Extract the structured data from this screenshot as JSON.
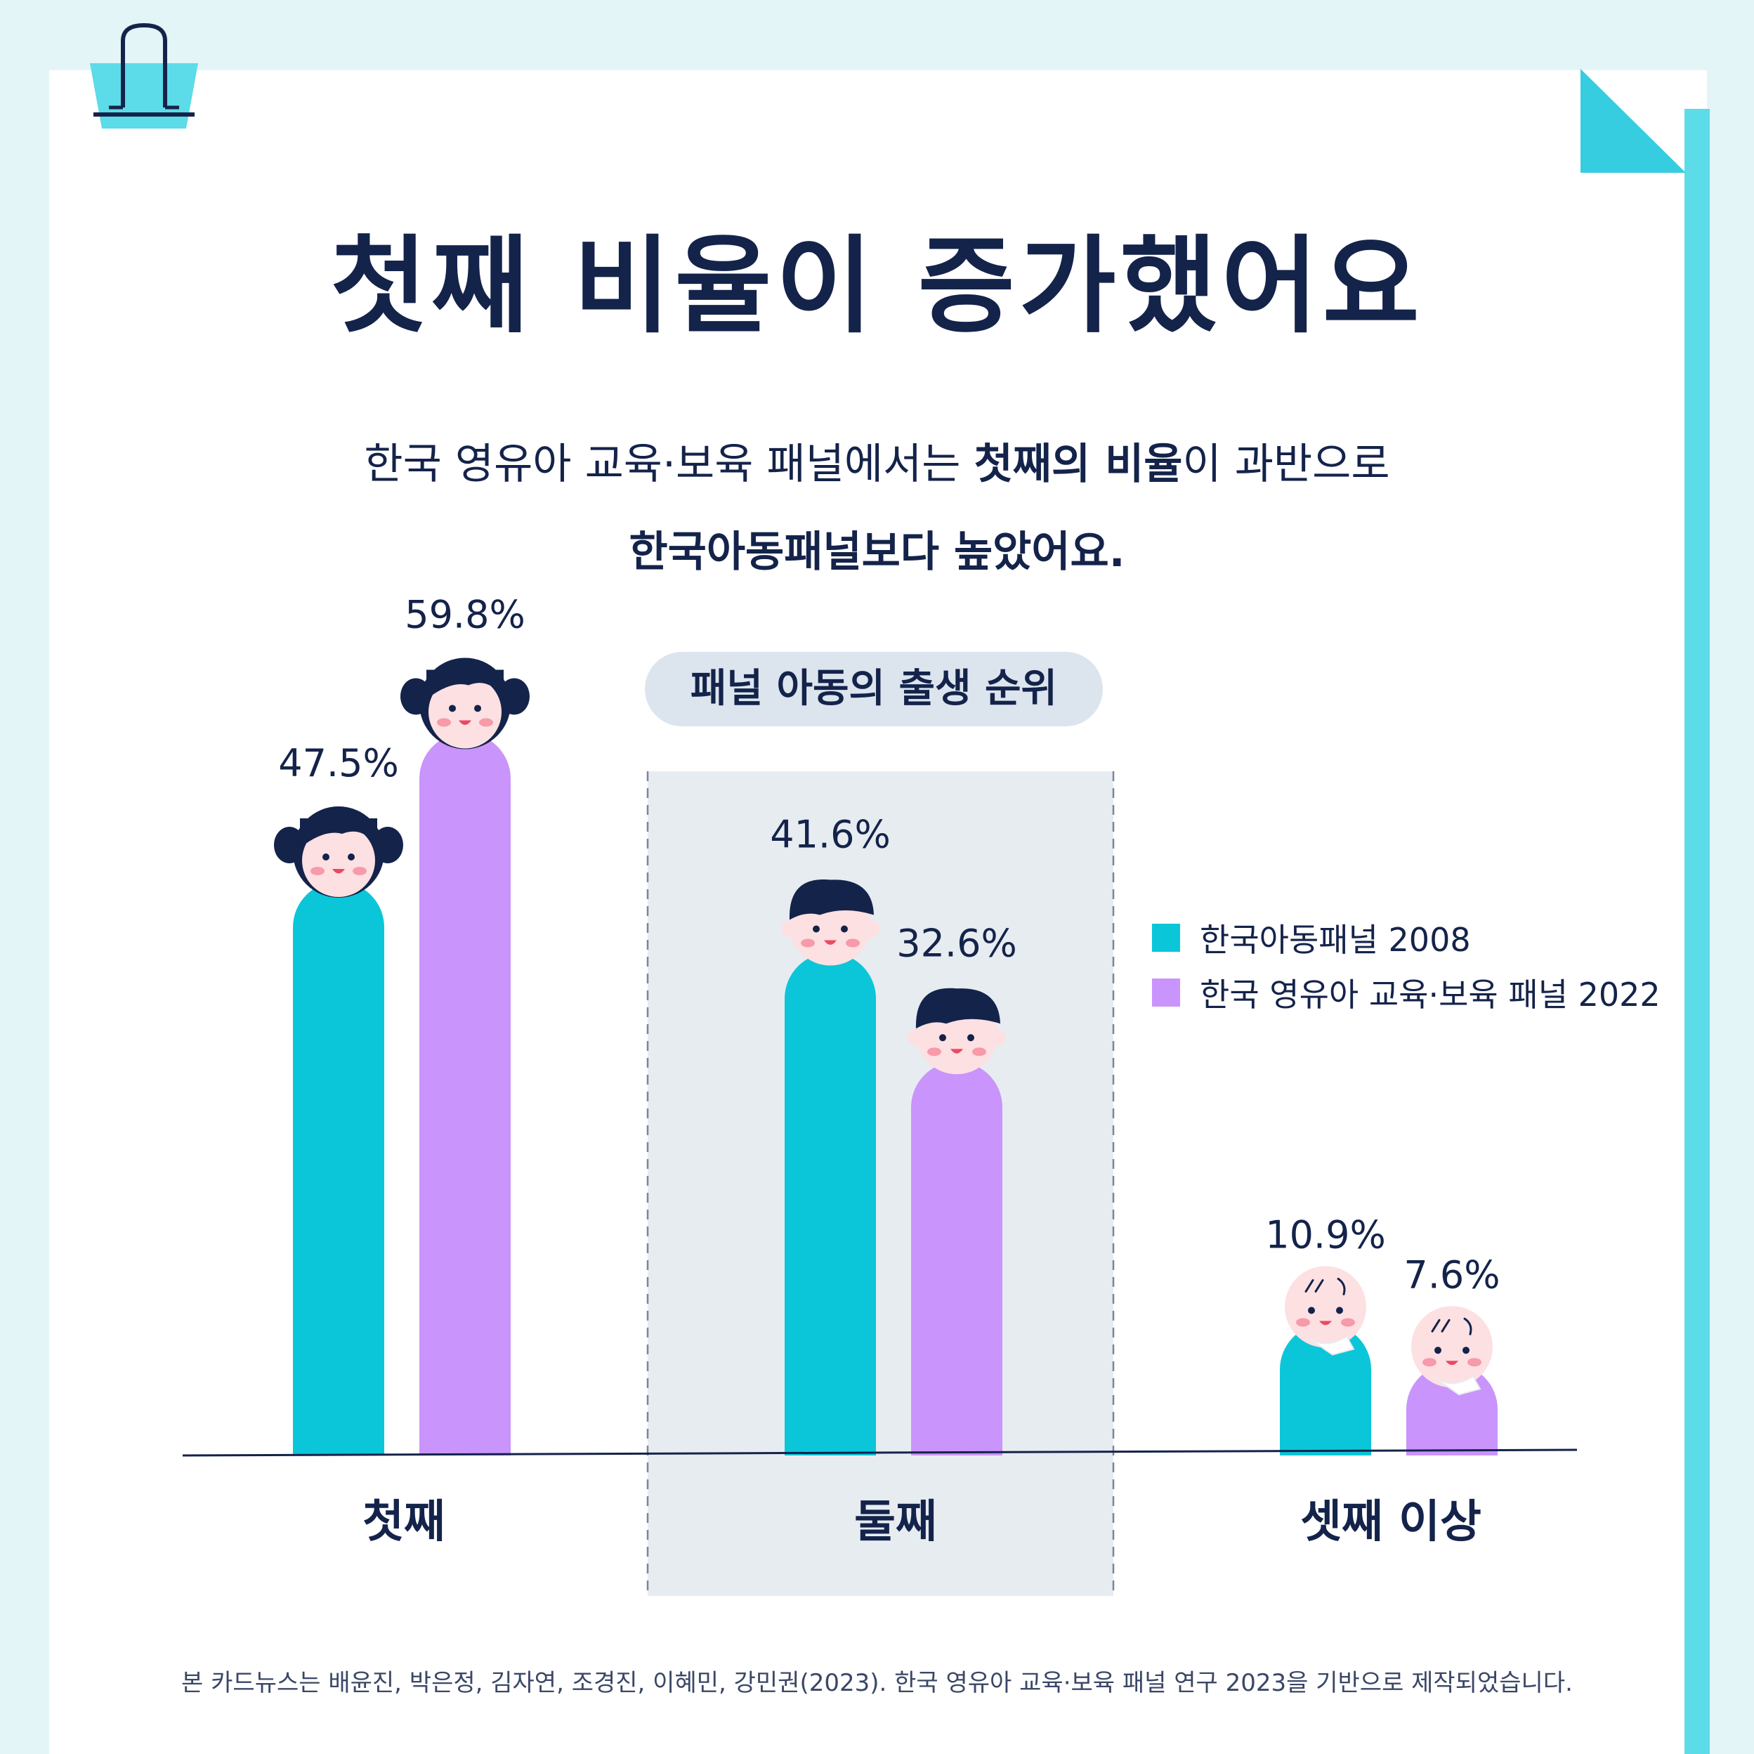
{
  "title": "첫째 비율이 증가했어요",
  "description": {
    "line1_part1": "한국 영유아 교육·보육 패널에서는 ",
    "line1_bold": "첫째의 비율",
    "line1_part2": "이 과반으로",
    "line2": "한국아동패널보다 높았어요."
  },
  "chart_label": "패널 아동의 출생 순위",
  "footnote": "본 카드뉴스는 배윤진, 박은정, 김자연, 조경진, 이혜민, 강민권(2023). 한국 영유아 교육·보육 패널 연구 2023을 기반으로 제작되었습니다.",
  "colors": {
    "background": "#e3f5f7",
    "accent": "#5cdbe9",
    "navy": "#14234a",
    "teal": "#0bc6d8",
    "purple": "#c994fb",
    "highlight_panel": "#e7ecf1"
  },
  "chart_data": {
    "type": "bar",
    "categories": [
      "첫째",
      "둘째",
      "셋째 이상"
    ],
    "series": [
      {
        "name": "한국아동패널 2008",
        "values": [
          47.5,
          41.6,
          10.9
        ],
        "color": "#0bc6d8"
      },
      {
        "name": "한국 영유아 교육·보육 패널 2022",
        "values": [
          59.8,
          32.6,
          7.6
        ],
        "color": "#c994fb"
      }
    ],
    "value_labels": [
      [
        "47.5%",
        "41.6%",
        "10.9%"
      ],
      [
        "59.8%",
        "32.6%",
        "7.6%"
      ]
    ],
    "unit": "%",
    "highlighted_category": "둘째",
    "legend_position": "right",
    "bar_markers": [
      "girl-character",
      "boy-character",
      "baby-character"
    ],
    "grid": false
  }
}
